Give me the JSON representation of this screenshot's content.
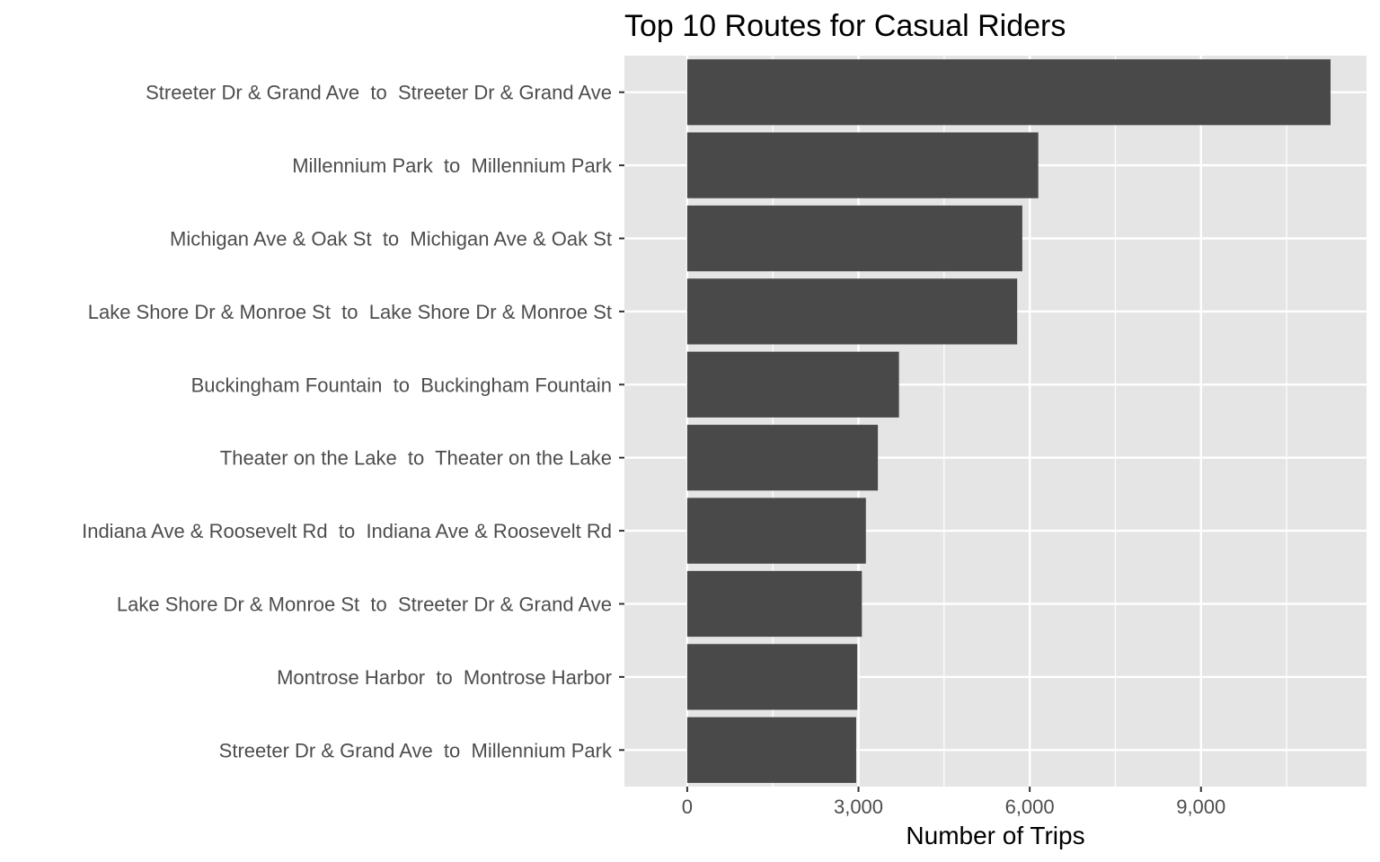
{
  "chart_data": {
    "type": "bar",
    "orientation": "horizontal",
    "title": "Top 10 Routes for Casual Riders",
    "xlabel": "Number of Trips",
    "ylabel": "",
    "categories": [
      "Streeter Dr & Grand Ave  to  Streeter Dr & Grand Ave",
      "Millennium Park  to  Millennium Park",
      "Michigan Ave & Oak St  to  Michigan Ave & Oak St",
      "Lake Shore Dr & Monroe St  to  Lake Shore Dr & Monroe St",
      "Buckingham Fountain  to  Buckingham Fountain",
      "Theater on the Lake  to  Theater on the Lake",
      "Indiana Ave & Roosevelt Rd  to  Indiana Ave & Roosevelt Rd",
      "Lake Shore Dr & Monroe St  to  Streeter Dr & Grand Ave",
      "Montrose Harbor  to  Montrose Harbor",
      "Streeter Dr & Grand Ave  to  Millennium Park"
    ],
    "values": [
      11270,
      6150,
      5870,
      5780,
      3710,
      3340,
      3130,
      3060,
      2980,
      2960
    ],
    "xlim": [
      -1100,
      11900
    ],
    "xticks": [
      0,
      3000,
      6000,
      9000
    ],
    "xtick_labels": [
      "0",
      "3,000",
      "6,000",
      "9,000"
    ],
    "grid": true,
    "bar_color": "#494949",
    "panel_color": "#e5e5e5",
    "grid_color": "#ffffff"
  }
}
